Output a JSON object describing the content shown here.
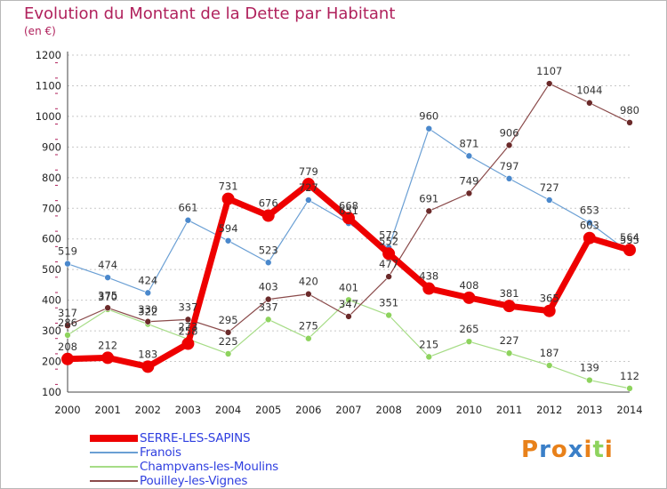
{
  "header": {
    "title": "Evolution du Montant de la Dette par Habitant",
    "unit": "(en €)"
  },
  "colors": {
    "title": "#b0215c",
    "legend_text": "#2f3fe0",
    "grid": "#c8c8c8",
    "axis": "#444444"
  },
  "chart_data": {
    "type": "line",
    "title": "Evolution du Montant de la Dette par Habitant",
    "subtitle": "(en €)",
    "xlabel": "",
    "ylabel": "",
    "x": [
      "2000",
      "2001",
      "2002",
      "2003",
      "2004",
      "2005",
      "2006",
      "2007",
      "2008",
      "2009",
      "2010",
      "2011",
      "2012",
      "2013",
      "2014"
    ],
    "ylim": [
      100,
      1200
    ],
    "yticks": [
      100,
      200,
      300,
      400,
      500,
      600,
      700,
      800,
      900,
      1000,
      1100,
      1200
    ],
    "grid": true,
    "legend_position": "bottom-left",
    "series": [
      {
        "name": "SERRE-LES-SAPINS",
        "color": "#ee0000",
        "marker": "#ee0000",
        "width": 7,
        "values": [
          208,
          212,
          183,
          258,
          731,
          676,
          779,
          668,
          552,
          438,
          408,
          381,
          365,
          603,
          564
        ],
        "labels": [
          "208",
          "212",
          "183",
          "258",
          "731",
          "676",
          "779",
          "668",
          "552",
          "438",
          "408",
          "381",
          "365",
          "603",
          "564"
        ]
      },
      {
        "name": "Franois",
        "color": "#6a9fd4",
        "marker": "#4a88cc",
        "width": 1.2,
        "values": [
          519,
          474,
          424,
          661,
          594,
          523,
          727,
          651,
          572,
          960,
          871,
          797,
          727,
          653,
          555
        ],
        "labels": [
          "519",
          "474",
          "424",
          "661",
          "594",
          "523",
          "727",
          "651",
          "572",
          "960",
          "871",
          "797",
          "727",
          "653",
          "555"
        ]
      },
      {
        "name": "Champvans-les-Moulins",
        "color": "#a6dc86",
        "marker": "#8ed35e",
        "width": 1.2,
        "values": [
          286,
          370,
          322,
          273,
          225,
          337,
          275,
          401,
          351,
          215,
          265,
          227,
          187,
          139,
          112
        ],
        "labels": [
          "286",
          "370",
          "322",
          "273",
          "225",
          "337",
          "275",
          "401",
          "351",
          "215",
          "265",
          "227",
          "187",
          "139",
          "112"
        ]
      },
      {
        "name": "Pouilley-les-Vignes",
        "color": "#8a4a4a",
        "marker": "#6b2a2a",
        "width": 1.2,
        "values": [
          317,
          375,
          330,
          337,
          295,
          403,
          420,
          347,
          477,
          691,
          749,
          906,
          1107,
          1044,
          980
        ],
        "labels": [
          "317",
          "375",
          "330",
          "337",
          "295",
          "403",
          "420",
          "347",
          "477",
          "691",
          "749",
          "906",
          "1107",
          "1044",
          "980"
        ]
      }
    ]
  },
  "legend": {
    "items": [
      {
        "label": "SERRE-LES-SAPINS",
        "color": "#ee0000",
        "thickness": 8
      },
      {
        "label": "Franois",
        "color": "#6a9fd4",
        "thickness": 2
      },
      {
        "label": "Champvans-les-Moulins",
        "color": "#a6dc86",
        "thickness": 2
      },
      {
        "label": "Pouilley-les-Vignes",
        "color": "#8a4a4a",
        "thickness": 2
      }
    ]
  },
  "logo": {
    "text": "Proxiti",
    "letter_colors": [
      "#e8811a",
      "#3a7fc8",
      "#e8811a",
      "#3a7fc8",
      "#e8811a",
      "#8ed35e",
      "#e8811a"
    ]
  }
}
